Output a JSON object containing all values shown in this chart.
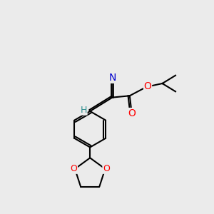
{
  "bg_color": "#ebebeb",
  "atom_colors": {
    "C": "#000000",
    "N": "#0000cd",
    "O": "#ff0000",
    "H": "#2f8f8f"
  },
  "bond_color": "#000000",
  "figsize": [
    3.0,
    3.0
  ],
  "dpi": 100
}
